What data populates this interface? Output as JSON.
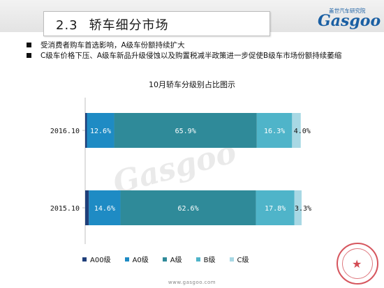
{
  "header": {
    "section_number": "2.3",
    "section_title": "轿车细分市场",
    "logo_small": "盖世汽车研究院",
    "logo_big": "Gasgoo"
  },
  "bullets": [
    "受消费者购车首选影响，A级车份额持续扩大",
    "C级车价格下压、A级车新品升级侵蚀以及购置税减半政策进一步促使B级车市场份额持续萎缩"
  ],
  "chart_data": {
    "type": "bar",
    "orientation": "horizontal",
    "stacked": true,
    "title": "10月轿车分级别占比图示",
    "categories": [
      "2016.10",
      "2015.10"
    ],
    "series": [
      {
        "name": "A00级",
        "values": [
          0.8,
          1.7
        ],
        "labels": [
          "",
          ""
        ],
        "color": "#1f3f7a"
      },
      {
        "name": "A0级",
        "values": [
          12.6,
          14.6
        ],
        "labels": [
          "12.6%",
          "14.6%"
        ],
        "color": "#1e8bc4"
      },
      {
        "name": "A级",
        "values": [
          65.9,
          62.6
        ],
        "labels": [
          "65.9%",
          "62.6%"
        ],
        "color": "#2f8a99"
      },
      {
        "name": "B级",
        "values": [
          16.3,
          17.8
        ],
        "labels": [
          "16.3%",
          "17.8%"
        ],
        "color": "#4fb4c9"
      },
      {
        "name": "C级",
        "values": [
          4.0,
          3.3
        ],
        "labels": [
          "4.0%",
          "3.3%"
        ],
        "color": "#a8d8e4"
      }
    ],
    "xlim": [
      0,
      100
    ],
    "legend_position": "bottom",
    "grid": false
  },
  "footer": {
    "url": "www.gasgoo.com"
  },
  "watermark": "Gasgoo"
}
